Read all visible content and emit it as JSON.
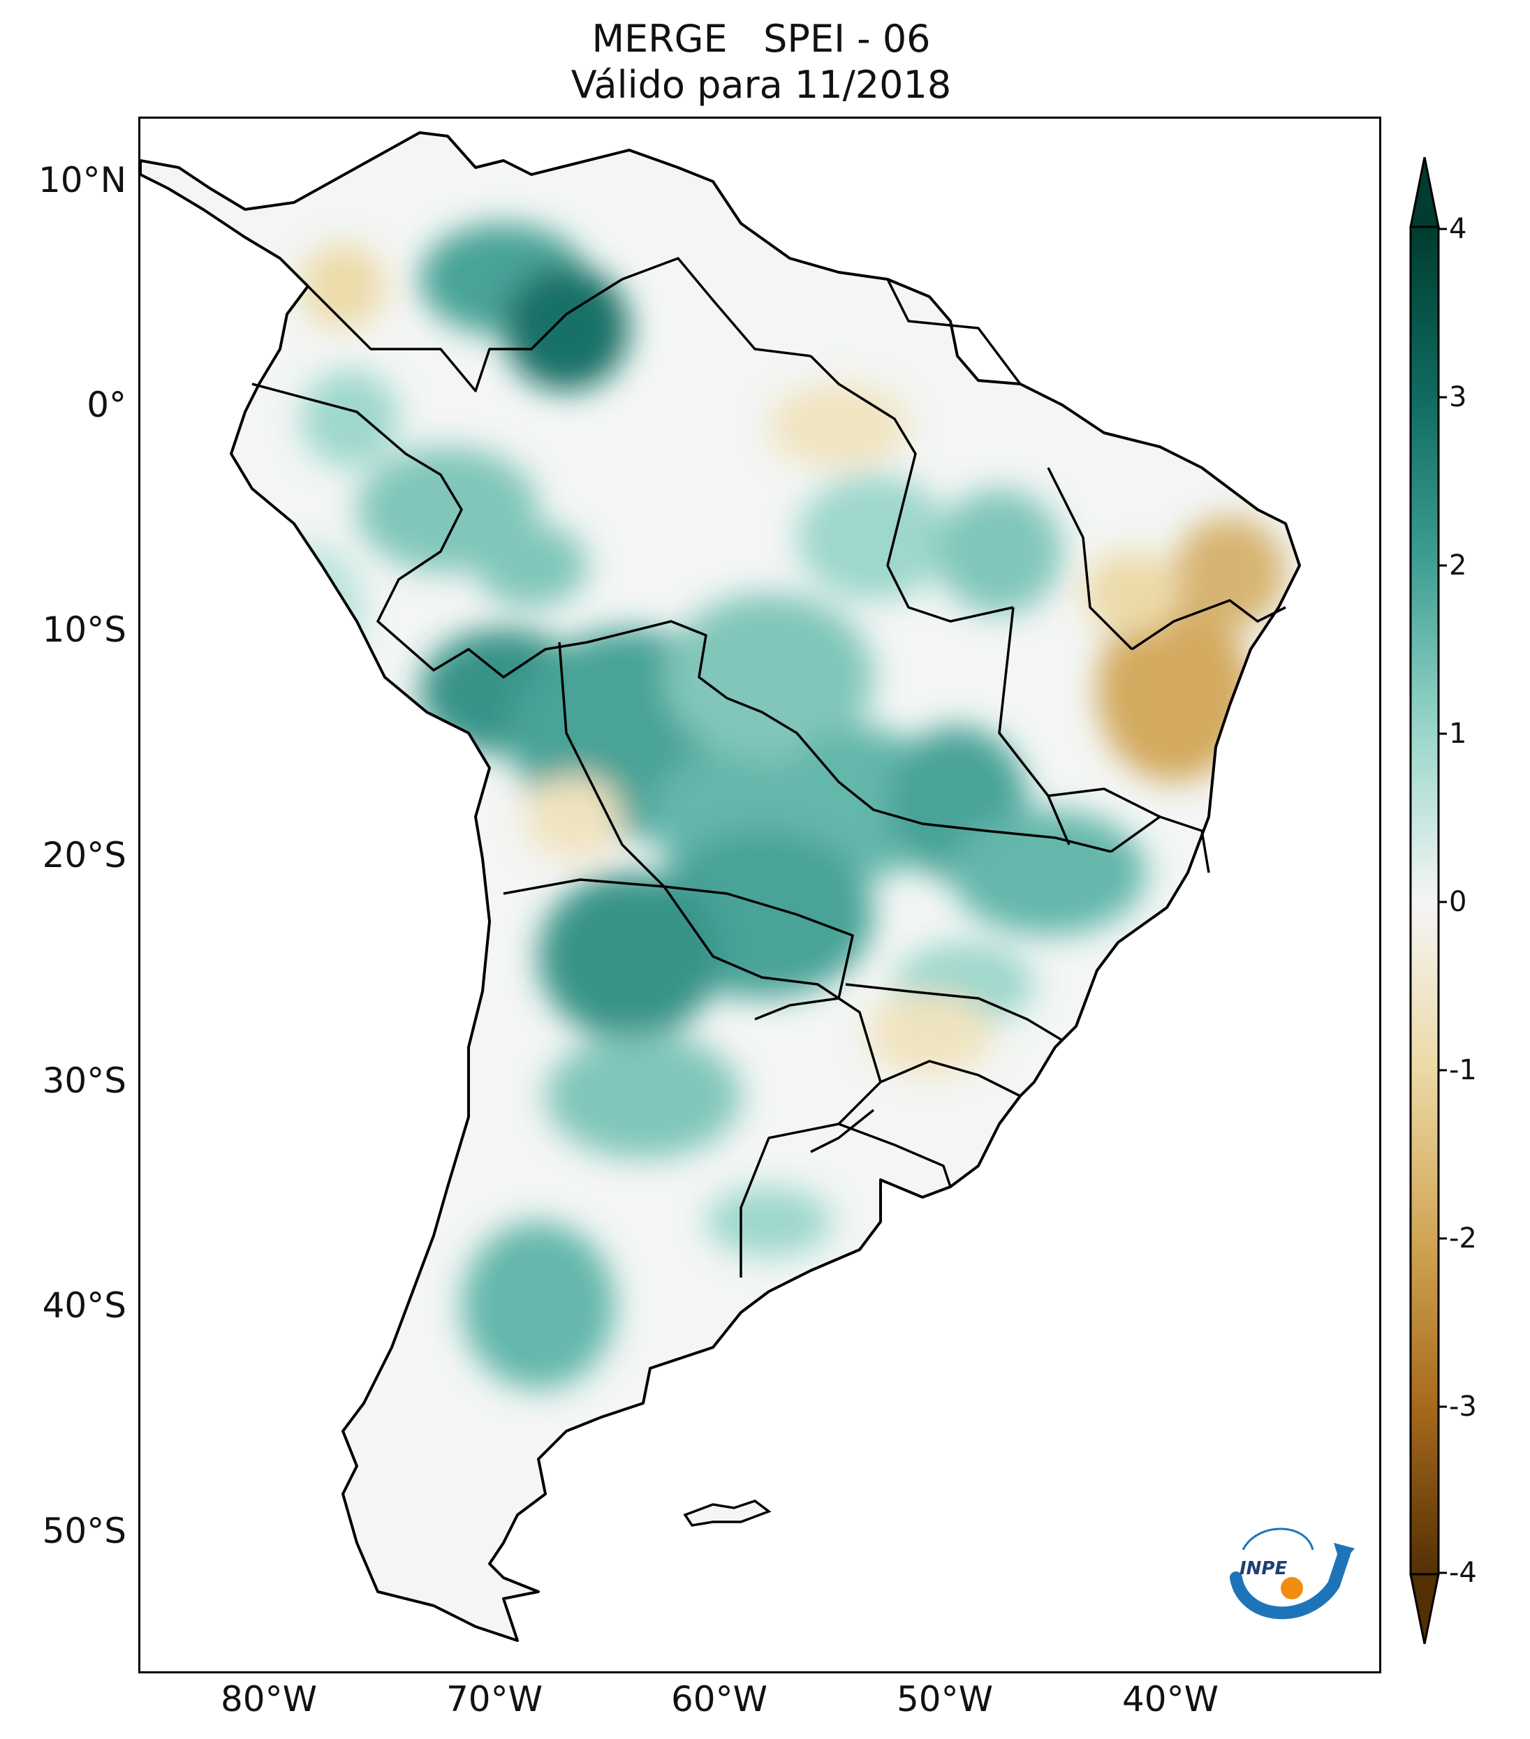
{
  "title": {
    "line1": "MERGE   SPEI - 06",
    "line2": "Válido para 11/2018"
  },
  "map": {
    "lat_labels": [
      "10°N",
      "0°",
      "10°S",
      "20°S",
      "30°S",
      "40°S",
      "50°S"
    ],
    "lon_labels": [
      "80°W",
      "70°W",
      "60°W",
      "50°W",
      "40°W"
    ],
    "extent": {
      "lon_min": -85,
      "lon_max": -30,
      "lat_min": -56,
      "lat_max": 13
    }
  },
  "colorbar": {
    "ticks": [
      "4",
      "3",
      "2",
      "1",
      "0",
      "-1",
      "-2",
      "-3",
      "-4"
    ],
    "colormap": "BrBG",
    "colors": {
      "plus4": "#003c30",
      "plus3": "#0f6b60",
      "plus2": "#3f9f93",
      "plus1": "#9ad6cb",
      "zero": "#f5f5f5",
      "minus1": "#ecd9a6",
      "minus2": "#d1a656",
      "minus3": "#a76a1c",
      "minus4": "#543005"
    }
  },
  "logo": {
    "text": "INPE",
    "icon": "inpe-logo-icon"
  }
}
